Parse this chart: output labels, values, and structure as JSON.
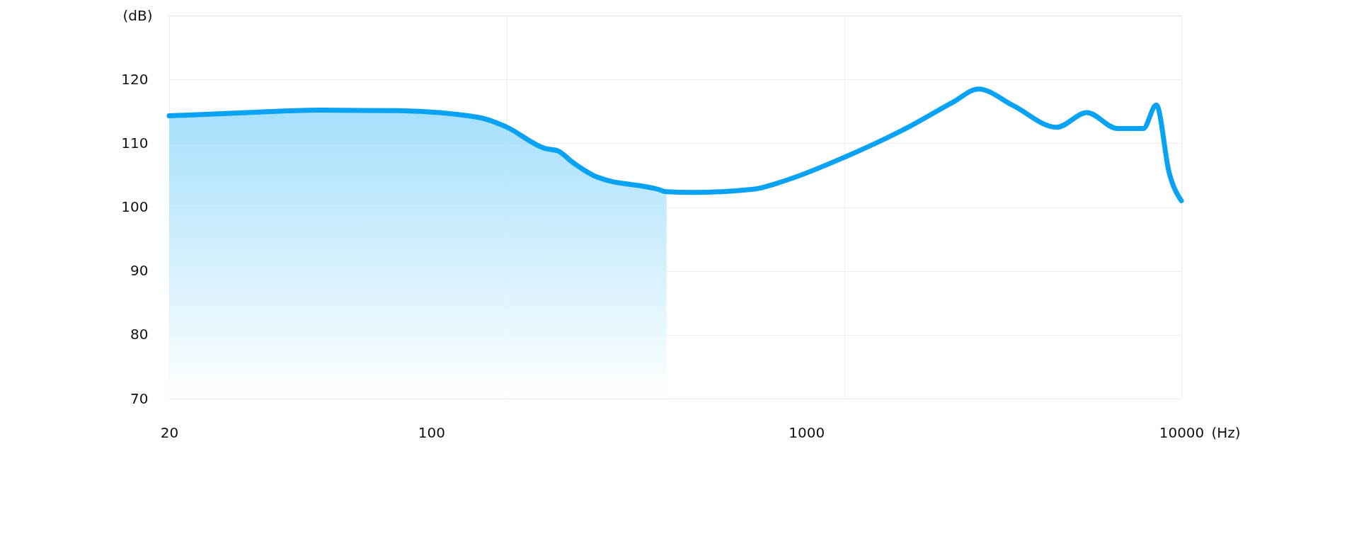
{
  "chart_data": {
    "type": "line",
    "xlabel": "(Hz)",
    "ylabel": "(dB)",
    "log": "x",
    "xlim": [
      20,
      10000
    ],
    "ylim": [
      70,
      130
    ],
    "xticks": [
      20,
      {
        "value": 100,
        "label": "100"
      },
      {
        "value": 159,
        "label": null
      },
      {
        "value": 1000,
        "label": "1000"
      },
      {
        "value": 1262,
        "label": null
      },
      10000
    ],
    "yticks": [
      70,
      80,
      90,
      100,
      110,
      120
    ],
    "grid": true,
    "line_style": "solid",
    "marker": "none",
    "series": [
      {
        "type": "area",
        "color": "#8fd8fb",
        "x": [
          20,
          34.8,
          50.5,
          81.5,
          135,
          158,
          201,
          218,
          236,
          277,
          402,
          424
        ],
        "values": [
          114.3,
          114.9,
          115.2,
          115.1,
          114.0,
          112.6,
          109.2,
          108.8,
          107.2,
          104.7,
          102.8,
          102.4
        ]
      },
      {
        "color": "#0aa2f2",
        "x": [
          20,
          34.8,
          50.5,
          81.5,
          135,
          158,
          201,
          218,
          236,
          277,
          402,
          424,
          497,
          722,
          893,
          1262,
          1881,
          2455,
          2879,
          3563,
          4649,
          5600,
          6749,
          7914,
          8575,
          9287,
          10000
        ],
        "values": [
          114.3,
          114.9,
          115.2,
          115.1,
          114.0,
          112.6,
          109.2,
          108.8,
          107.2,
          104.7,
          102.8,
          102.4,
          102.3,
          102.8,
          104.3,
          107.8,
          112.6,
          116.4,
          118.5,
          115.9,
          112.5,
          114.8,
          112.3,
          112.3,
          116.0,
          105.3,
          101.0
        ]
      }
    ]
  }
}
